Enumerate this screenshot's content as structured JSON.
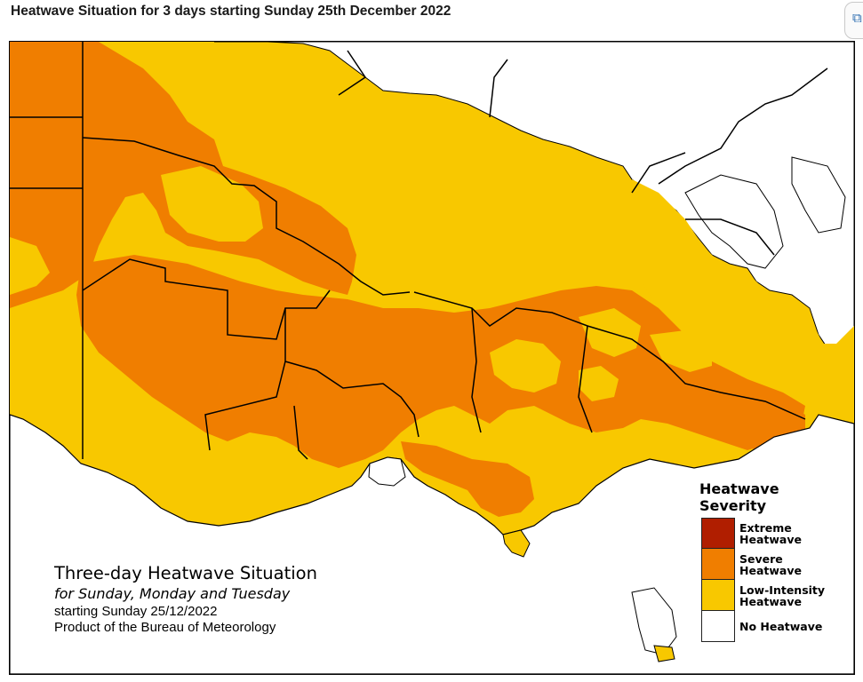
{
  "header": {
    "title": "Heatwave Situation for 3 days starting Sunday 25th December 2022"
  },
  "map": {
    "caption": {
      "line1": "Three-day Heatwave Situation",
      "line2": "for Sunday, Monday and Tuesday",
      "line3": "starting Sunday 25/12/2022",
      "line4": "Product of the Bureau of Meteorology"
    },
    "legend": {
      "title": "Heatwave\nSeverity",
      "items": [
        {
          "label": "Extreme\nHeatwave",
          "color": "#b01e00"
        },
        {
          "label": "Severe\nHeatwave",
          "color": "#f07e00"
        },
        {
          "label": "Low-Intensity\nHeatwave",
          "color": "#f8c800"
        },
        {
          "label": "No Heatwave",
          "color": "#ffffff"
        }
      ]
    },
    "colors": {
      "severe": "#f07e00",
      "low_intensity": "#f8c800",
      "no_heatwave": "#ffffff",
      "coast": "#000000"
    }
  },
  "icons": {
    "corner": "window-icon"
  }
}
